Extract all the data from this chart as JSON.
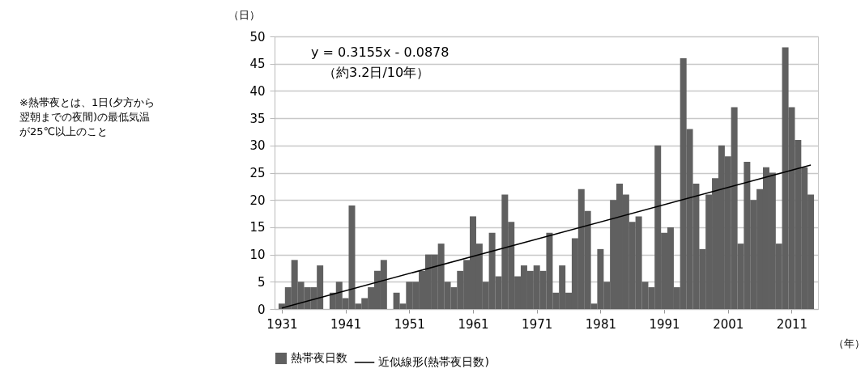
{
  "chart_data": {
    "type": "bar",
    "ylabel": "（日）",
    "xlabel": "（年）",
    "x": [
      1931,
      1932,
      1933,
      1934,
      1935,
      1936,
      1937,
      1938,
      1939,
      1940,
      1941,
      1942,
      1943,
      1944,
      1945,
      1946,
      1947,
      1948,
      1949,
      1950,
      1951,
      1952,
      1953,
      1954,
      1955,
      1956,
      1957,
      1958,
      1959,
      1960,
      1961,
      1962,
      1963,
      1964,
      1965,
      1966,
      1967,
      1968,
      1969,
      1970,
      1971,
      1972,
      1973,
      1974,
      1975,
      1976,
      1977,
      1978,
      1979,
      1980,
      1981,
      1982,
      1983,
      1984,
      1985,
      1986,
      1987,
      1988,
      1989,
      1990,
      1991,
      1992,
      1993,
      1994,
      1995,
      1996,
      1997,
      1998,
      1999,
      2000,
      2001,
      2002,
      2003,
      2004,
      2005,
      2006,
      2007,
      2008,
      2009,
      2010,
      2011,
      2012,
      2013,
      2014
    ],
    "series": [
      {
        "name": "熱帯夜日数",
        "color": "#606060",
        "values": [
          1,
          4,
          9,
          5,
          4,
          4,
          8,
          0,
          3,
          5,
          2,
          19,
          1,
          2,
          4,
          7,
          9,
          0,
          3,
          1,
          5,
          5,
          7,
          10,
          10,
          12,
          5,
          4,
          7,
          9,
          17,
          12,
          5,
          14,
          6,
          21,
          16,
          6,
          8,
          7,
          8,
          7,
          14,
          3,
          8,
          3,
          13,
          22,
          18,
          1,
          11,
          5,
          20,
          23,
          21,
          16,
          17,
          5,
          4,
          30,
          14,
          15,
          4,
          46,
          33,
          23,
          11,
          21,
          24,
          30,
          28,
          37,
          12,
          27,
          20,
          22,
          26,
          25,
          12,
          48,
          37,
          31,
          26,
          21
        ]
      },
      {
        "name": "近似線形(熱帯夜日数)",
        "type": "line",
        "color": "#000000",
        "x": [
          1931,
          2014
        ],
        "values": [
          0.2,
          26.4
        ]
      }
    ],
    "xlim": [
      1930.5,
      2014.5
    ],
    "xticks": [
      1931,
      1941,
      1951,
      1961,
      1971,
      1981,
      1991,
      2001,
      2011
    ],
    "ylim": [
      0,
      50
    ],
    "yticks": [
      0,
      5,
      10,
      15,
      20,
      25,
      30,
      35,
      40,
      45,
      50
    ],
    "grid": "y",
    "legend": "bottom",
    "annotations": [
      "y = 0.3155x - 0.0878",
      "（約3.2日/10年）",
      "※熱帯夜とは、1日(夕方から翌朝までの夜間)の最低気温が25℃以上のこと"
    ]
  }
}
